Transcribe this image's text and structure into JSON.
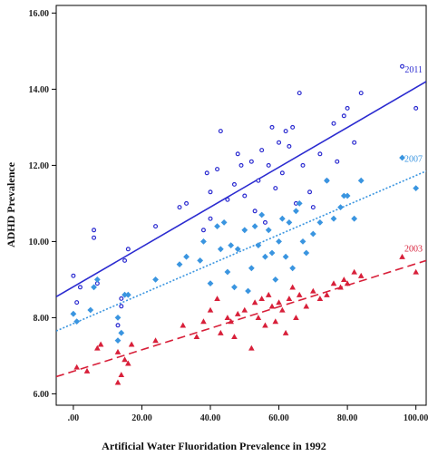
{
  "chart_data": {
    "type": "scatter",
    "xlabel": "Artificial Water Fluoridation Prevalence in 1992",
    "ylabel": "ADHD Prevalence",
    "xlim": [
      -5,
      103
    ],
    "ylim": [
      5.7,
      16.2
    ],
    "x_ticks": [
      ".00",
      "20.00",
      "40.00",
      "60.00",
      "80.00",
      "100.00"
    ],
    "x_tick_values": [
      0,
      20,
      40,
      60,
      80,
      100
    ],
    "y_ticks": [
      "6.00",
      "8.00",
      "10.00",
      "12.00",
      "14.00",
      "16.00"
    ],
    "y_tick_values": [
      6,
      8,
      10,
      12,
      14,
      16
    ],
    "grid": false,
    "series": [
      {
        "name": "2011",
        "marker": "open-circle",
        "color": "#2b2bd0",
        "line_style": "solid",
        "fit": {
          "x": [
            -5,
            103
          ],
          "y": [
            8.55,
            14.2
          ]
        },
        "points": [
          [
            0,
            9.1
          ],
          [
            1,
            8.4
          ],
          [
            2,
            8.8
          ],
          [
            6,
            10.1
          ],
          [
            6,
            10.3
          ],
          [
            7,
            8.9
          ],
          [
            13,
            7.8
          ],
          [
            14,
            8.3
          ],
          [
            14,
            8.5
          ],
          [
            15,
            9.5
          ],
          [
            16,
            9.8
          ],
          [
            24,
            10.4
          ],
          [
            31,
            10.9
          ],
          [
            33,
            11.0
          ],
          [
            38,
            10.3
          ],
          [
            39,
            11.8
          ],
          [
            40,
            11.3
          ],
          [
            40,
            10.6
          ],
          [
            42,
            11.9
          ],
          [
            43,
            12.9
          ],
          [
            45,
            11.1
          ],
          [
            47,
            11.5
          ],
          [
            48,
            12.3
          ],
          [
            49,
            12.0
          ],
          [
            50,
            11.2
          ],
          [
            52,
            12.1
          ],
          [
            53,
            10.8
          ],
          [
            54,
            11.6
          ],
          [
            55,
            12.4
          ],
          [
            56,
            10.5
          ],
          [
            57,
            12.0
          ],
          [
            58,
            13.0
          ],
          [
            59,
            11.4
          ],
          [
            60,
            12.6
          ],
          [
            61,
            11.8
          ],
          [
            62,
            12.9
          ],
          [
            63,
            12.5
          ],
          [
            64,
            13.0
          ],
          [
            65,
            11.0
          ],
          [
            66,
            13.9
          ],
          [
            67,
            12.0
          ],
          [
            69,
            11.3
          ],
          [
            70,
            10.9
          ],
          [
            72,
            12.3
          ],
          [
            74,
            11.6
          ],
          [
            76,
            13.1
          ],
          [
            77,
            12.1
          ],
          [
            79,
            13.3
          ],
          [
            80,
            13.5
          ],
          [
            82,
            12.6
          ],
          [
            84,
            13.9
          ],
          [
            96,
            14.6
          ],
          [
            100,
            13.5
          ]
        ]
      },
      {
        "name": "2007",
        "marker": "filled-diamond",
        "color": "#3a95e0",
        "line_style": "dotted",
        "fit": {
          "x": [
            -5,
            103
          ],
          "y": [
            7.65,
            11.85
          ]
        },
        "points": [
          [
            0,
            8.1
          ],
          [
            1,
            7.9
          ],
          [
            5,
            8.2
          ],
          [
            6,
            8.8
          ],
          [
            7,
            9.0
          ],
          [
            13,
            7.4
          ],
          [
            13,
            8.0
          ],
          [
            14,
            7.6
          ],
          [
            15,
            8.6
          ],
          [
            16,
            8.6
          ],
          [
            24,
            9.0
          ],
          [
            31,
            9.4
          ],
          [
            33,
            9.6
          ],
          [
            37,
            9.5
          ],
          [
            38,
            10.0
          ],
          [
            40,
            8.9
          ],
          [
            42,
            10.4
          ],
          [
            43,
            9.8
          ],
          [
            44,
            10.5
          ],
          [
            45,
            9.2
          ],
          [
            46,
            9.9
          ],
          [
            47,
            8.8
          ],
          [
            48,
            9.8
          ],
          [
            50,
            10.3
          ],
          [
            51,
            8.7
          ],
          [
            52,
            9.3
          ],
          [
            53,
            10.4
          ],
          [
            54,
            9.9
          ],
          [
            55,
            10.7
          ],
          [
            56,
            9.6
          ],
          [
            57,
            10.3
          ],
          [
            58,
            9.7
          ],
          [
            59,
            9.0
          ],
          [
            60,
            10.0
          ],
          [
            61,
            10.6
          ],
          [
            62,
            9.6
          ],
          [
            63,
            10.5
          ],
          [
            64,
            9.3
          ],
          [
            65,
            10.8
          ],
          [
            66,
            11.0
          ],
          [
            67,
            10.0
          ],
          [
            68,
            9.7
          ],
          [
            70,
            10.2
          ],
          [
            72,
            10.5
          ],
          [
            74,
            11.6
          ],
          [
            76,
            10.6
          ],
          [
            78,
            10.9
          ],
          [
            79,
            11.2
          ],
          [
            80,
            11.2
          ],
          [
            82,
            10.6
          ],
          [
            84,
            11.6
          ],
          [
            96,
            12.2
          ],
          [
            100,
            11.4
          ]
        ]
      },
      {
        "name": "2003",
        "marker": "filled-triangle",
        "color": "#d8203a",
        "line_style": "dashed",
        "fit": {
          "x": [
            -5,
            103
          ],
          "y": [
            6.45,
            9.5
          ]
        },
        "points": [
          [
            1,
            6.7
          ],
          [
            4,
            6.6
          ],
          [
            7,
            7.2
          ],
          [
            8,
            7.3
          ],
          [
            13,
            7.1
          ],
          [
            13,
            6.3
          ],
          [
            14,
            6.5
          ],
          [
            15,
            6.9
          ],
          [
            16,
            6.8
          ],
          [
            17,
            7.3
          ],
          [
            24,
            7.4
          ],
          [
            32,
            7.8
          ],
          [
            36,
            7.5
          ],
          [
            38,
            7.9
          ],
          [
            40,
            8.2
          ],
          [
            42,
            8.5
          ],
          [
            43,
            7.6
          ],
          [
            45,
            8.0
          ],
          [
            46,
            7.9
          ],
          [
            47,
            7.5
          ],
          [
            48,
            8.1
          ],
          [
            50,
            8.2
          ],
          [
            52,
            7.2
          ],
          [
            53,
            8.4
          ],
          [
            54,
            8.0
          ],
          [
            55,
            8.5
          ],
          [
            56,
            7.8
          ],
          [
            57,
            8.6
          ],
          [
            58,
            8.3
          ],
          [
            59,
            7.9
          ],
          [
            60,
            8.4
          ],
          [
            61,
            8.2
          ],
          [
            62,
            7.6
          ],
          [
            63,
            8.5
          ],
          [
            64,
            8.8
          ],
          [
            65,
            8.0
          ],
          [
            66,
            8.6
          ],
          [
            68,
            8.3
          ],
          [
            70,
            8.7
          ],
          [
            72,
            8.5
          ],
          [
            74,
            8.6
          ],
          [
            76,
            8.9
          ],
          [
            78,
            8.8
          ],
          [
            79,
            9.0
          ],
          [
            80,
            8.9
          ],
          [
            82,
            9.2
          ],
          [
            84,
            9.1
          ],
          [
            96,
            9.6
          ],
          [
            100,
            9.2
          ]
        ]
      }
    ]
  }
}
